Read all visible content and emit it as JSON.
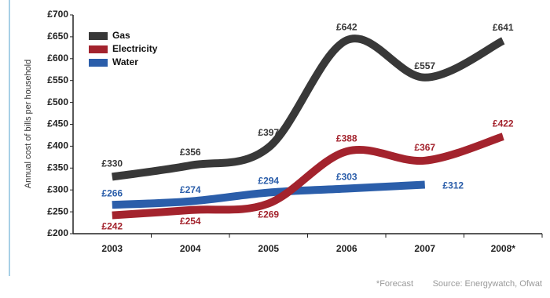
{
  "chart_data": {
    "type": "line",
    "y_label": "Annual cost of bills per household",
    "footnote": "*Forecast",
    "source": "Source:  Energywatch, Ofwat",
    "categories": [
      "2003",
      "2004",
      "2005",
      "2006",
      "2007",
      "2008*"
    ],
    "ylim": [
      200,
      700
    ],
    "yticks": [
      {
        "value": 200,
        "label": "£200"
      },
      {
        "value": 250,
        "label": "£250"
      },
      {
        "value": 300,
        "label": "£300"
      },
      {
        "value": 350,
        "label": "£350"
      },
      {
        "value": 400,
        "label": "£400"
      },
      {
        "value": 450,
        "label": "£450"
      },
      {
        "value": 500,
        "label": "£500"
      },
      {
        "value": 550,
        "label": "£550"
      },
      {
        "value": 600,
        "label": "£600"
      },
      {
        "value": 650,
        "label": "£650"
      },
      {
        "value": 700,
        "label": "£700"
      }
    ],
    "series": [
      {
        "name": "Gas",
        "color": "#383838",
        "values": [
          330,
          356,
          397,
          642,
          557,
          641
        ],
        "value_labels": [
          "£330",
          "£356",
          "£397",
          "£642",
          "£557",
          "£641"
        ]
      },
      {
        "name": "Electricity",
        "color": "#a3232d",
        "values": [
          242,
          254,
          269,
          388,
          367,
          422
        ],
        "value_labels": [
          "£242",
          "£254",
          "£269",
          "£388",
          "£367",
          "£422"
        ]
      },
      {
        "name": "Water",
        "color": "#2b5eaa",
        "values": [
          266,
          274,
          294,
          303,
          312,
          null
        ],
        "value_labels": [
          "£266",
          "£274",
          "£294",
          "£303",
          "£312",
          null
        ]
      }
    ]
  }
}
